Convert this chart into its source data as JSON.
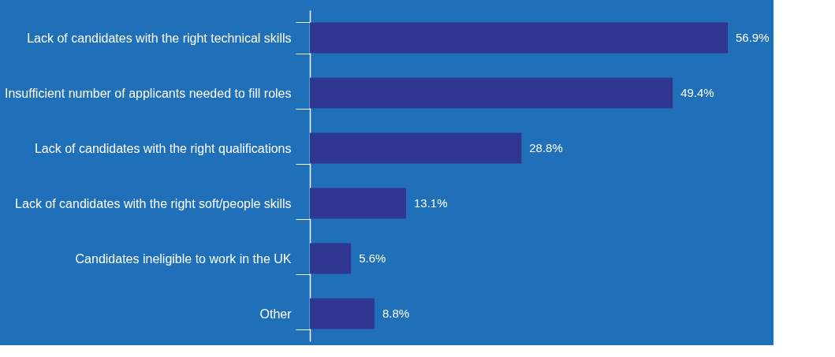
{
  "chart_data": {
    "type": "bar",
    "orientation": "horizontal",
    "categories": [
      "Lack of candidates with the right technical skills",
      "Insufficient number of applicants needed to fill roles",
      "Lack of candidates with the right qualifications",
      "Lack of candidates with the right soft/people skills",
      "Candidates ineligible to work in the UK",
      "Other"
    ],
    "values": [
      56.9,
      49.4,
      28.8,
      13.1,
      5.6,
      8.8
    ],
    "value_labels": [
      "56.9%",
      "49.4%",
      "28.8%",
      "13.1%",
      "5.6%",
      "8.8%"
    ],
    "color": "#2e3690"
  }
}
